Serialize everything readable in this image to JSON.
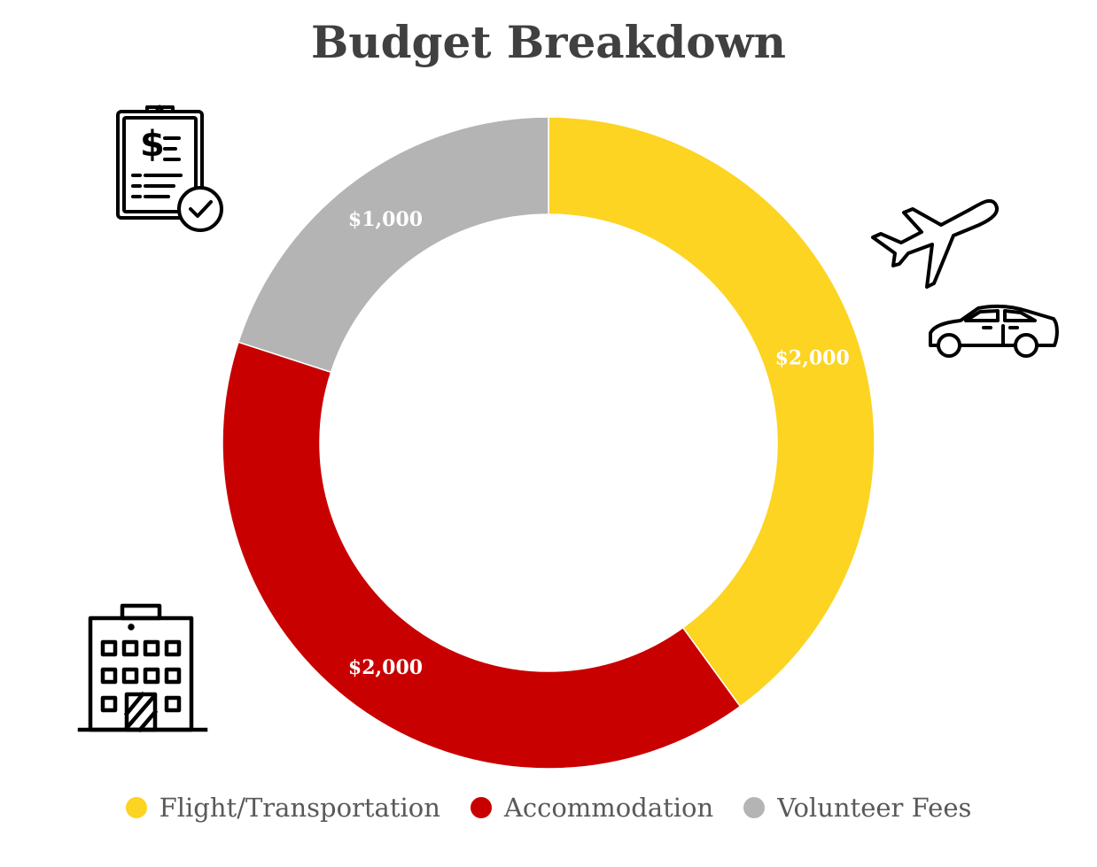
{
  "chart_data": {
    "type": "pie",
    "title": "Budget Breakdown",
    "categories": [
      "Flight/Transportation",
      "Accommodation",
      "Volunteer Fees"
    ],
    "values": [
      2000,
      2000,
      1000
    ],
    "labels": [
      "$2,000",
      "$2,000",
      "$1,000"
    ],
    "colors": [
      "#FCD421",
      "#C80000",
      "#B4B4B4"
    ],
    "legend": "bottom",
    "donut": true
  },
  "icons": {
    "top_left": "invoice-clipboard-icon",
    "top_right_1": "airplane-icon",
    "top_right_2": "car-icon",
    "bottom_left": "building-icon"
  }
}
